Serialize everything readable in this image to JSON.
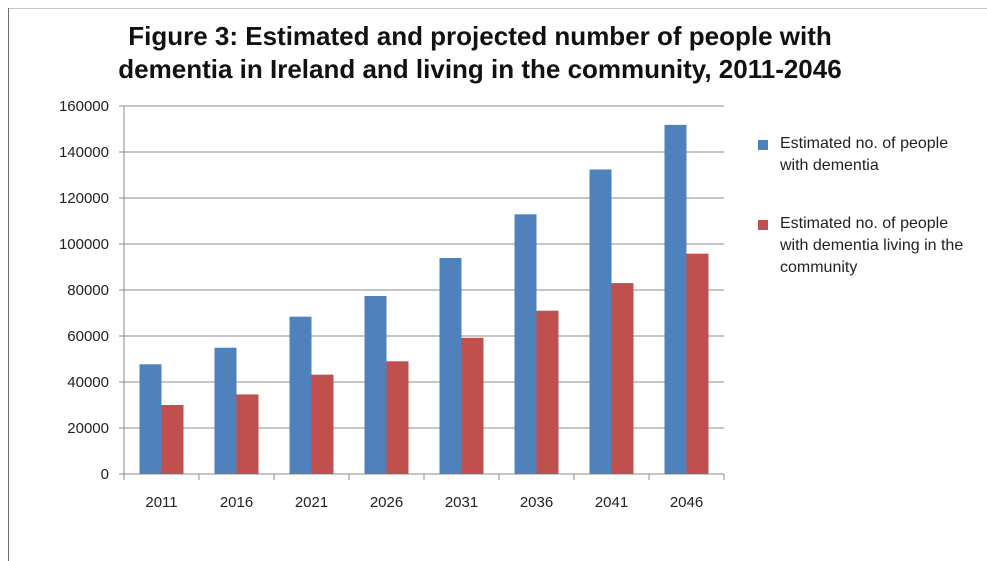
{
  "chart_data": {
    "type": "bar",
    "title_lines": [
      "Figure 3: Estimated and projected number of people with",
      "dementia in Ireland and living in the community, 2011-2046"
    ],
    "categories": [
      "2011",
      "2016",
      "2021",
      "2026",
      "2031",
      "2036",
      "2041",
      "2046"
    ],
    "series": [
      {
        "name": "Estimated no. of people with dementia",
        "color": "#4F81BD",
        "values": [
          47700,
          54900,
          68400,
          77400,
          93900,
          112900,
          132400,
          151800
        ]
      },
      {
        "name": "Estimated no. of people with dementia living in the community",
        "color": "#C0504D",
        "values": [
          30000,
          34600,
          43200,
          49000,
          59200,
          71000,
          83000,
          95800
        ]
      }
    ],
    "ylim": [
      0,
      160000
    ],
    "yticks": [
      "0",
      "20000",
      "40000",
      "60000",
      "80000",
      "100000",
      "120000",
      "140000",
      "160000"
    ],
    "grid": true,
    "legend_position": "right",
    "xlabel": "",
    "ylabel": ""
  }
}
